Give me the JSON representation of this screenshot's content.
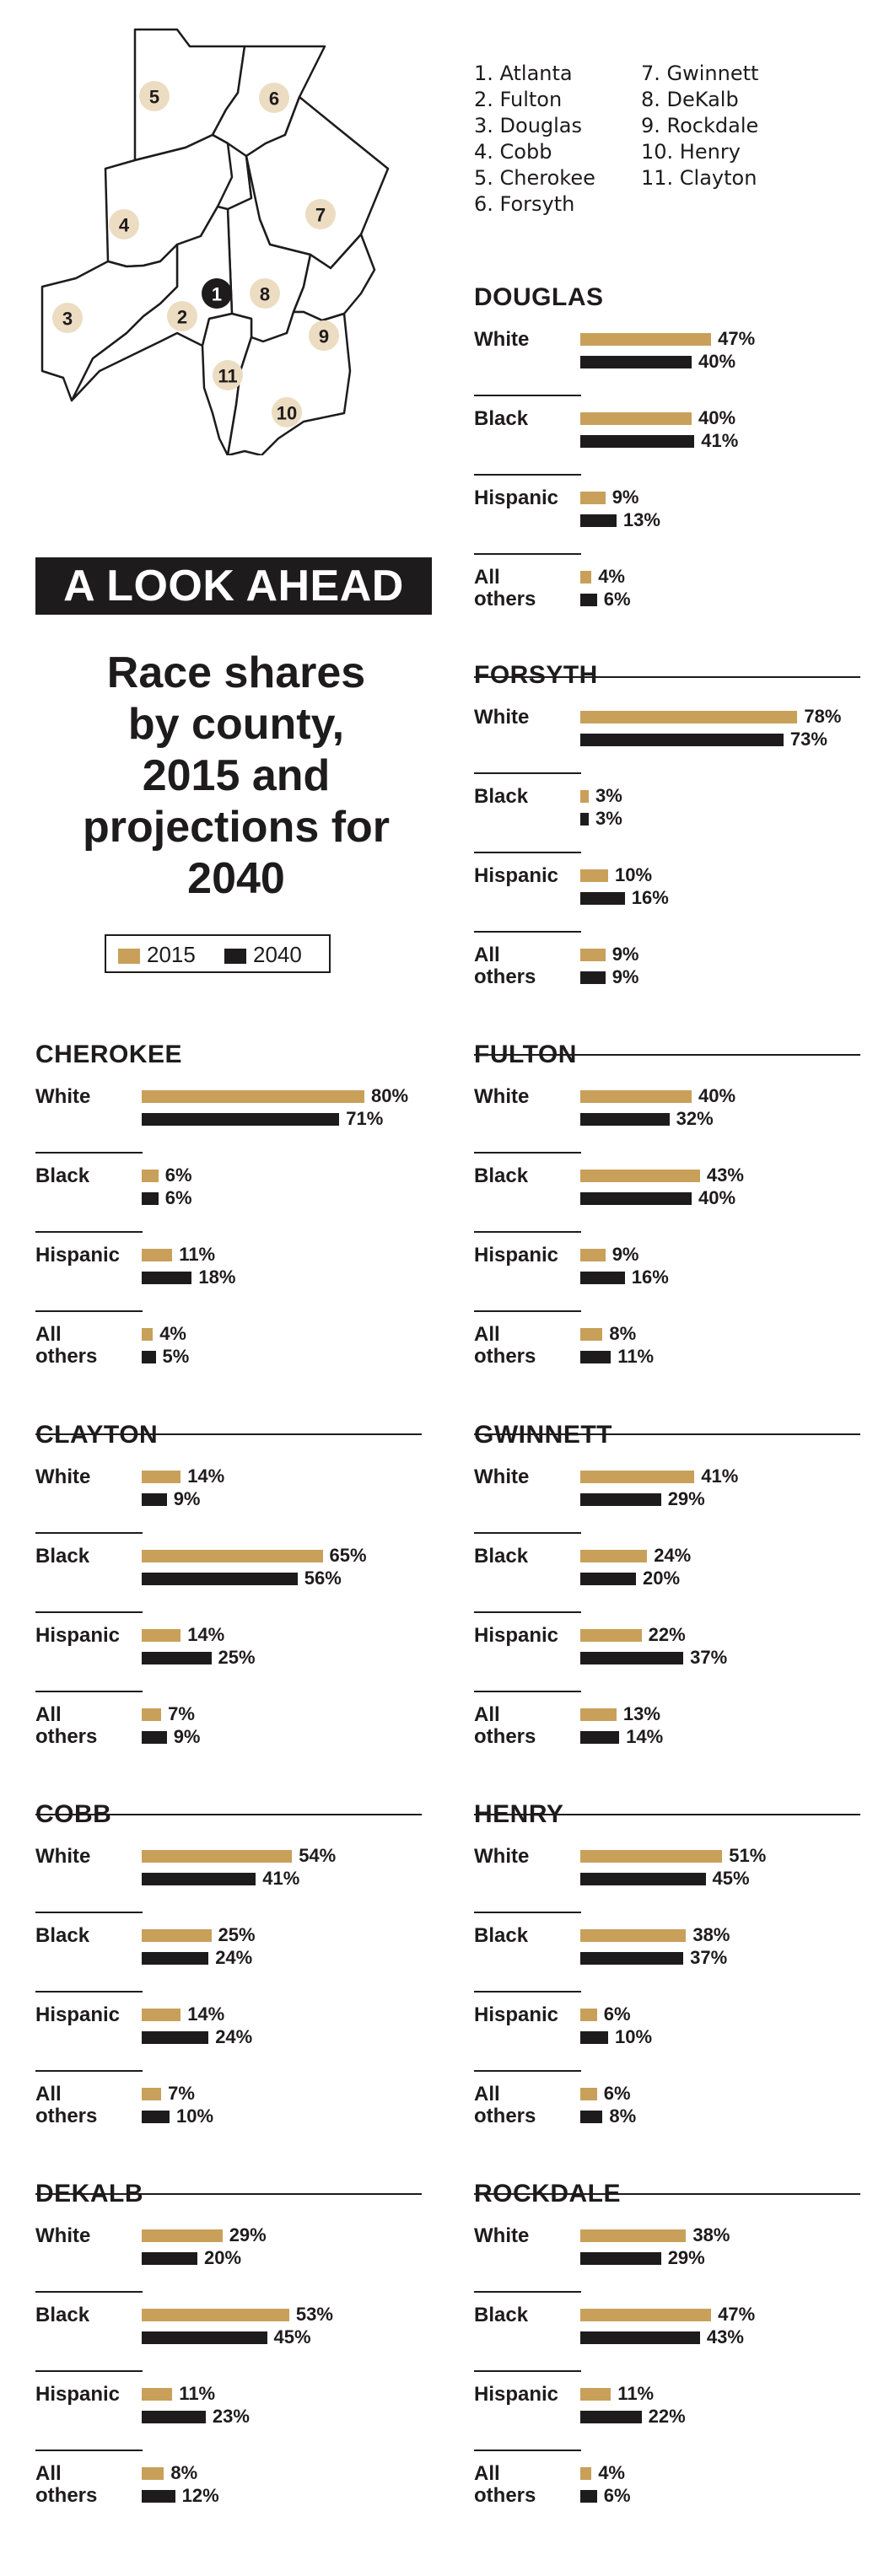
{
  "map": {
    "markers": [
      {
        "num": "1",
        "dark": true
      },
      {
        "num": "2"
      },
      {
        "num": "3"
      },
      {
        "num": "4"
      },
      {
        "num": "5"
      },
      {
        "num": "6"
      },
      {
        "num": "7"
      },
      {
        "num": "8"
      },
      {
        "num": "9"
      },
      {
        "num": "10"
      },
      {
        "num": "11"
      }
    ]
  },
  "county_legend": {
    "col1": [
      "1. Atlanta",
      "2. Fulton",
      "3. Douglas",
      "4. Cobb",
      "5. Cherokee",
      "6. Forsyth"
    ],
    "col2": [
      "7. Gwinnett",
      "8. DeKalb",
      "9. Rockdale",
      "10. Henry",
      "11. Clayton"
    ]
  },
  "headline": "A LOOK AHEAD",
  "title": [
    "Race shares",
    "by county,",
    "2015 and",
    "projections for",
    "2040"
  ],
  "key": {
    "label_2015": "2015",
    "label_2040": "2040",
    "color_2015": "#c8a05a",
    "color_2040": "#1e1b1c"
  },
  "chart_data": {
    "type": "bar",
    "series_names": [
      "2015",
      "2040"
    ],
    "categories": [
      "White",
      "Black",
      "Hispanic",
      "All others"
    ],
    "unit": "%",
    "panels": [
      {
        "county": "DOUGLAS",
        "values_2015": [
          47,
          40,
          9,
          4
        ],
        "values_2040": [
          40,
          41,
          13,
          6
        ]
      },
      {
        "county": "FORSYTH",
        "values_2015": [
          78,
          3,
          10,
          9
        ],
        "values_2040": [
          73,
          3,
          16,
          9
        ]
      },
      {
        "county": "CHEROKEE",
        "values_2015": [
          80,
          6,
          11,
          4
        ],
        "values_2040": [
          71,
          6,
          18,
          5
        ]
      },
      {
        "county": "FULTON",
        "values_2015": [
          40,
          43,
          9,
          8
        ],
        "values_2040": [
          32,
          40,
          16,
          11
        ]
      },
      {
        "county": "CLAYTON",
        "values_2015": [
          14,
          65,
          14,
          7
        ],
        "values_2040": [
          9,
          56,
          25,
          9
        ]
      },
      {
        "county": "GWINNETT",
        "values_2015": [
          41,
          24,
          22,
          13
        ],
        "values_2040": [
          29,
          20,
          37,
          14
        ]
      },
      {
        "county": "COBB",
        "values_2015": [
          54,
          25,
          14,
          7
        ],
        "values_2040": [
          41,
          24,
          24,
          10
        ]
      },
      {
        "county": "HENRY",
        "values_2015": [
          51,
          38,
          6,
          6
        ],
        "values_2040": [
          45,
          37,
          10,
          8
        ]
      },
      {
        "county": "DEKALB",
        "values_2015": [
          29,
          53,
          11,
          8
        ],
        "values_2040": [
          20,
          45,
          23,
          12
        ]
      },
      {
        "county": "ROCKDALE",
        "values_2015": [
          38,
          47,
          11,
          4
        ],
        "values_2040": [
          29,
          43,
          22,
          6
        ]
      }
    ]
  }
}
